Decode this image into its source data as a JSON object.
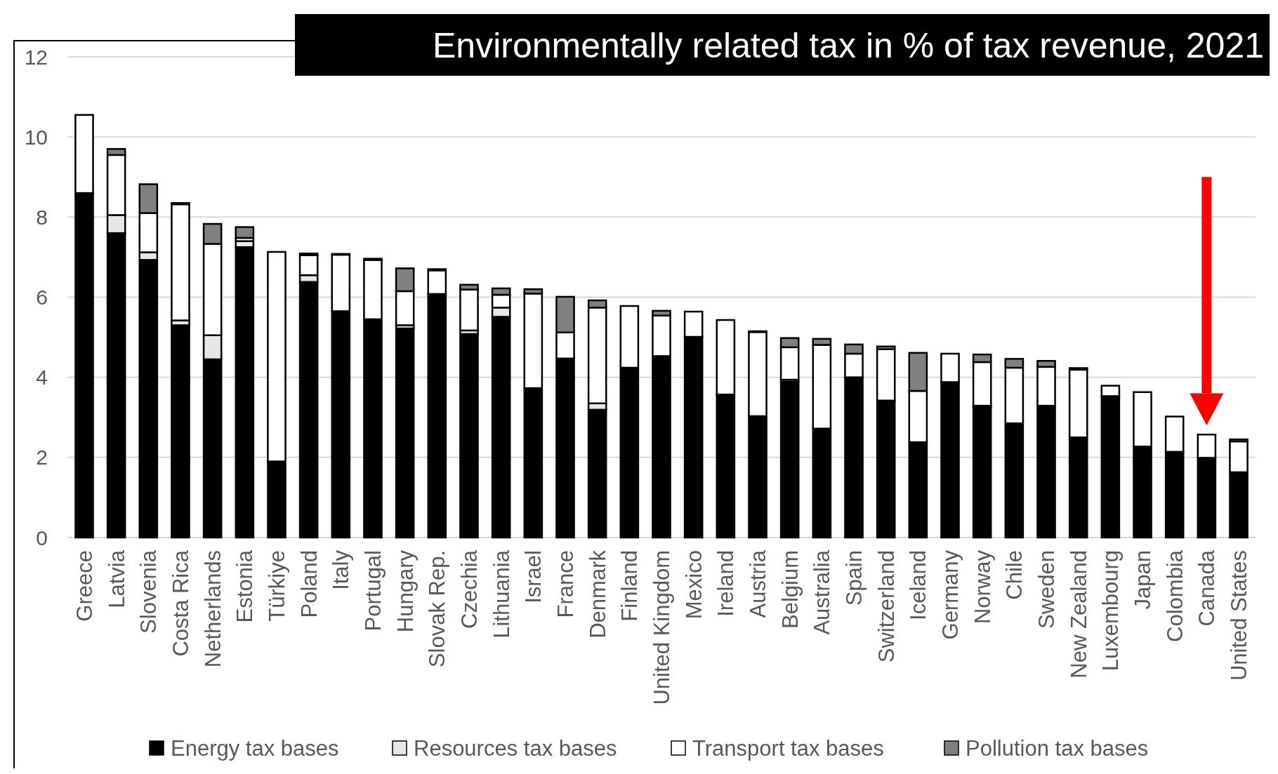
{
  "chart_data": {
    "type": "bar",
    "title": "Environmentally related tax in % of tax revenue, 2021",
    "stacked": true,
    "categories": [
      "Greece",
      "Latvia",
      "Slovenia",
      "Costa Rica",
      "Netherlands",
      "Estonia",
      "Türkiye",
      "Poland",
      "Italy",
      "Portugal",
      "Hungary",
      "Slovak Rep.",
      "Czechia",
      "Lithuania",
      "Israel",
      "France",
      "Denmark",
      "Finland",
      "United Kingdom",
      "Mexico",
      "Ireland",
      "Austria",
      "Belgium",
      "Australia",
      "Spain",
      "Switzerland",
      "Iceland",
      "Germany",
      "Norway",
      "Chile",
      "Sweden",
      "New Zealand",
      "Luxembourg",
      "Japan",
      "Colombia",
      "Canada",
      "United States"
    ],
    "series": [
      {
        "name": "Energy tax bases",
        "color": "#000000",
        "values": [
          8.6,
          7.6,
          6.93,
          5.3,
          4.45,
          7.25,
          1.9,
          6.38,
          5.65,
          5.45,
          5.22,
          6.08,
          5.08,
          5.51,
          3.73,
          4.47,
          3.19,
          4.24,
          4.53,
          5.01,
          3.57,
          3.03,
          3.89,
          2.72,
          4.0,
          3.42,
          2.38,
          3.88,
          3.25,
          2.85,
          3.29,
          2.5,
          3.53,
          2.27,
          2.14,
          1.99,
          1.63
        ]
      },
      {
        "name": "Resources tax bases",
        "color": "#e7e7e7",
        "values": [
          0,
          0.45,
          0.19,
          0.12,
          0.6,
          0.15,
          0,
          0.17,
          0,
          0,
          0.08,
          0,
          0.09,
          0.23,
          0,
          0,
          0.16,
          0,
          null,
          0,
          0,
          0,
          0.05,
          0,
          0,
          null,
          0,
          0,
          0.04,
          0,
          0,
          0,
          0,
          0,
          0,
          0,
          0
        ]
      },
      {
        "name": "Transport tax bases",
        "color": "#ffffff",
        "values": [
          1.95,
          1.5,
          0.98,
          2.9,
          2.28,
          0.08,
          5.23,
          0.5,
          1.41,
          1.48,
          0.85,
          0.59,
          1.02,
          0.32,
          2.36,
          0.65,
          2.39,
          1.54,
          1.01,
          0.63,
          1.86,
          2.1,
          0.81,
          2.09,
          0.59,
          1.28,
          1.28,
          0.71,
          1.09,
          1.39,
          0.97,
          1.69,
          0.26,
          1.36,
          0.88,
          0.58,
          0.77
        ]
      },
      {
        "name": "Pollution tax bases",
        "color": "#808080",
        "values": [
          0,
          0.15,
          0.72,
          0.03,
          0.5,
          0.27,
          0,
          0.04,
          0.02,
          0.03,
          0.57,
          0.03,
          0.12,
          0.16,
          0.11,
          0.89,
          0.18,
          0,
          0.12,
          0,
          0,
          0.02,
          0.23,
          0.15,
          0.23,
          0.07,
          0.95,
          0,
          0.19,
          0.22,
          0.15,
          0.04,
          0,
          0,
          0,
          0,
          0.05
        ]
      }
    ],
    "ylim": [
      0,
      12
    ],
    "yticks": [
      0,
      2,
      4,
      6,
      8,
      10,
      12
    ],
    "grid": "y",
    "legend": "bottom"
  }
}
